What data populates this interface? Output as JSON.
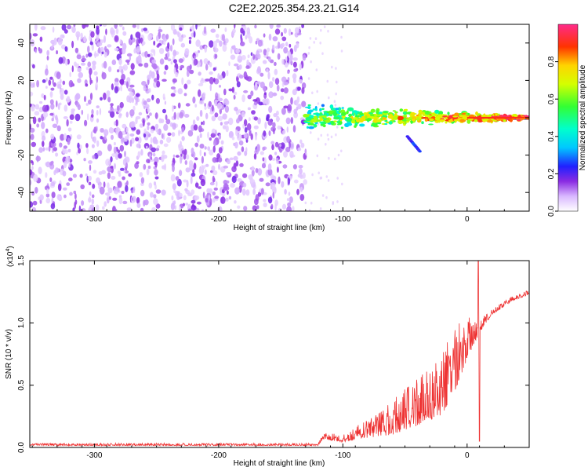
{
  "title": "C2E2.2025.354.23.21.G14",
  "colors": {
    "scatter": "#8a3ff0",
    "snr_line": "#ee3333",
    "axis": "#000000"
  },
  "chart_data": [
    {
      "type": "heatmap",
      "name": "spectrogram",
      "xlabel": "Height of straight line (km)",
      "ylabel": "Frequency (Hz)",
      "xlim": [
        -352,
        50
      ],
      "ylim": [
        -50,
        50
      ],
      "xticks": [
        -300,
        -200,
        -100,
        0
      ],
      "xtick_labels": [
        "-300",
        "-200",
        "-100",
        "0"
      ],
      "yticks": [
        -40,
        -20,
        0,
        20,
        40
      ],
      "ytick_labels": [
        "-40",
        "-20",
        "0",
        "20",
        "40"
      ],
      "noise_region_x": [
        -352,
        -130
      ],
      "signal_band_x": [
        -130,
        50
      ],
      "signal_center_hz": 0,
      "signal_halfwidth_hz": [
        6,
        1
      ],
      "secondary_streak": {
        "x": [
          -48,
          -38
        ],
        "y": [
          -10,
          -18
        ]
      },
      "colorbar": {
        "label": "Normalized spectral amplitude",
        "range": [
          0,
          1
        ],
        "ticks": [
          0.0,
          0.2,
          0.4,
          0.6,
          0.8
        ],
        "tick_labels": [
          "0.0",
          "0.2",
          "0.4",
          "0.6",
          "0.8"
        ]
      }
    },
    {
      "type": "line",
      "name": "snr",
      "xlabel": "Height of straight line (km)",
      "ylabel": "SNR (10 * v/v)",
      "scale_label": "(x10",
      "scale_exp": "4",
      "scale_close": ")",
      "xlim": [
        -352,
        50
      ],
      "ylim": [
        0,
        1.5
      ],
      "xticks": [
        -300,
        -200,
        -100,
        0
      ],
      "xtick_labels": [
        "-300",
        "-200",
        "-100",
        "0"
      ],
      "yticks": [
        0.0,
        0.5,
        1.0,
        1.5
      ],
      "ytick_labels": [
        "0.0",
        "0.5",
        "1.0",
        "1.5"
      ],
      "profile": {
        "x": [
          -352,
          -300,
          -200,
          -120,
          -116,
          -100,
          -80,
          -60,
          -40,
          -20,
          -10,
          0,
          10,
          20,
          35,
          50
        ],
        "baseline": [
          0.02,
          0.02,
          0.02,
          0.02,
          0.08,
          0.06,
          0.12,
          0.18,
          0.28,
          0.4,
          0.6,
          0.8,
          0.95,
          1.08,
          1.18,
          1.24
        ],
        "spread": [
          0.02,
          0.02,
          0.02,
          0.02,
          0.05,
          0.06,
          0.15,
          0.28,
          0.38,
          0.48,
          0.55,
          0.35,
          0.1,
          0.05,
          0.04,
          0.04
        ]
      },
      "peak": {
        "x": 9,
        "y": 1.5
      },
      "dip": {
        "x": 9,
        "y": 0.05
      }
    }
  ]
}
